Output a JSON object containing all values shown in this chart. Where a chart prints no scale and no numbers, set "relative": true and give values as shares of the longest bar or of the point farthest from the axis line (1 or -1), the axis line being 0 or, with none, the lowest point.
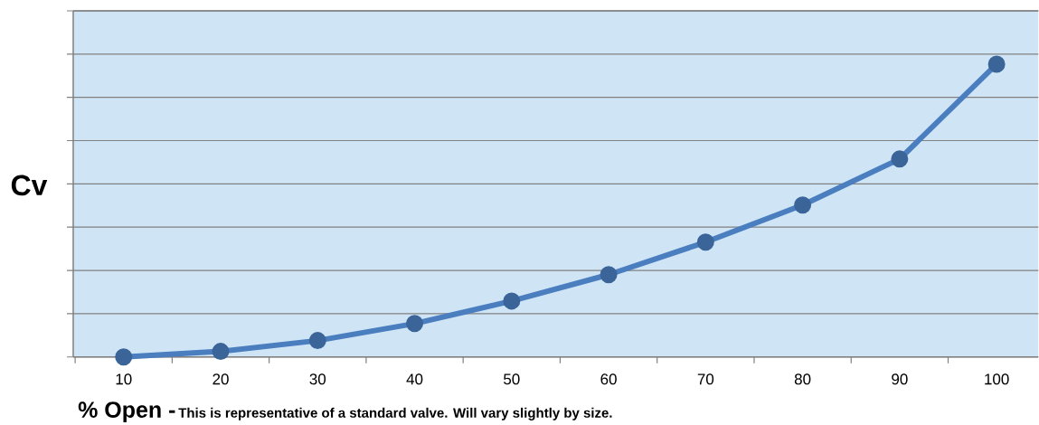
{
  "chart_data": {
    "type": "line",
    "relative": true,
    "ylabel": "Cv",
    "annotations": [
      "% Open -",
      "This is representative of a standard valve. Will vary slightly by size."
    ],
    "categories": [
      "10",
      "20",
      "30",
      "40",
      "50",
      "60",
      "70",
      "80",
      "90",
      "100"
    ],
    "series": [
      {
        "color": "#4a7ebf",
        "values": [
          0,
          0.019,
          0.056,
          0.114,
          0.191,
          0.281,
          0.392,
          0.519,
          0.676,
          1
        ]
      }
    ],
    "marker": "circle",
    "line_style": "solid",
    "grid": "y"
  }
}
